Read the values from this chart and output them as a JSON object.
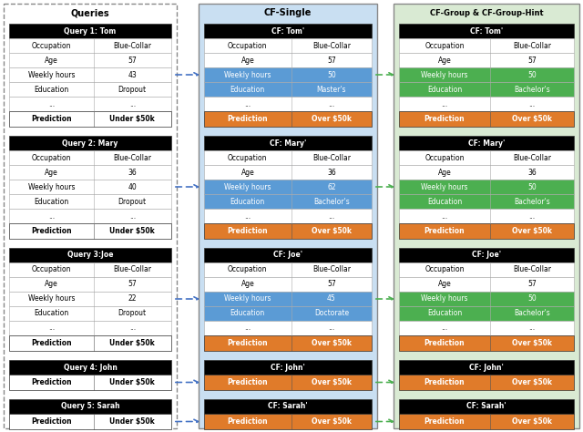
{
  "fig_width": 6.4,
  "fig_height": 4.74,
  "colors": {
    "black": "#000000",
    "white": "#ffffff",
    "blue_highlight": "#5b9bd5",
    "green_highlight": "#4caf50",
    "orange_prediction": "#e07b2a",
    "light_blue_bg": "#c9dff2",
    "light_green_bg": "#d9ead3",
    "arrow_blue": "#4472c4",
    "arrow_green": "#4caf50"
  },
  "query_tables": [
    {
      "name": "Query 1: Tom",
      "rows": [
        {
          "label": "Occupation",
          "value": "Blue-Collar"
        },
        {
          "label": "Age",
          "value": "57"
        },
        {
          "label": "Weekly hours",
          "value": "43"
        },
        {
          "label": "Education",
          "value": "Dropout"
        },
        {
          "label": "...",
          "value": "..."
        }
      ],
      "prediction": "Under $50k",
      "pred_bold": true
    },
    {
      "name": "Query 2: Mary",
      "rows": [
        {
          "label": "Occupation",
          "value": "Blue-Collar"
        },
        {
          "label": "Age",
          "value": "36"
        },
        {
          "label": "Weekly hours",
          "value": "40"
        },
        {
          "label": "Education",
          "value": "Dropout"
        },
        {
          "label": "...",
          "value": "..."
        }
      ],
      "prediction": "Under $50k",
      "pred_bold": true
    },
    {
      "name": "Query 3:Joe",
      "rows": [
        {
          "label": "Occupation",
          "value": "Blue-Collar"
        },
        {
          "label": "Age",
          "value": "57"
        },
        {
          "label": "Weekly hours",
          "value": "22"
        },
        {
          "label": "Education",
          "value": "Dropout"
        },
        {
          "label": "...",
          "value": "..."
        }
      ],
      "prediction": "Under $50k",
      "pred_bold": true
    },
    {
      "name": "Query 4: John",
      "rows": [],
      "prediction": "Under $50k",
      "pred_bold": true
    },
    {
      "name": "Query 5: Sarah",
      "rows": [],
      "prediction": "Under $50k",
      "pred_bold": true
    }
  ],
  "cf_single_tables": [
    {
      "name": "CF: Tom'",
      "rows": [
        {
          "label": "Occupation",
          "value": "Blue-Collar",
          "hl": false
        },
        {
          "label": "Age",
          "value": "57",
          "hl": false
        },
        {
          "label": "Weekly hours",
          "value": "50",
          "hl": true
        },
        {
          "label": "Education",
          "value": "Master's",
          "hl": true
        },
        {
          "label": "...",
          "value": "...",
          "hl": false
        }
      ],
      "prediction": "Over $50k",
      "hl_color": "#5b9bd5"
    },
    {
      "name": "CF: Mary'",
      "rows": [
        {
          "label": "Occupation",
          "value": "Blue-Collar",
          "hl": false
        },
        {
          "label": "Age",
          "value": "36",
          "hl": false
        },
        {
          "label": "Weekly hours",
          "value": "62",
          "hl": true
        },
        {
          "label": "Education",
          "value": "Bachelor's",
          "hl": true
        },
        {
          "label": "...",
          "value": "...",
          "hl": false
        }
      ],
      "prediction": "Over $50k",
      "hl_color": "#5b9bd5"
    },
    {
      "name": "CF: Joe'",
      "rows": [
        {
          "label": "Occupation",
          "value": "Blue-Collar",
          "hl": false
        },
        {
          "label": "Age",
          "value": "57",
          "hl": false
        },
        {
          "label": "Weekly hours",
          "value": "45",
          "hl": true
        },
        {
          "label": "Education",
          "value": "Doctorate",
          "hl": true
        },
        {
          "label": "...",
          "value": "...",
          "hl": false
        }
      ],
      "prediction": "Over $50k",
      "hl_color": "#5b9bd5"
    },
    {
      "name": "CF: John'",
      "rows": [],
      "prediction": "Over $50k",
      "hl_color": "#5b9bd5"
    },
    {
      "name": "CF: Sarah'",
      "rows": [],
      "prediction": "Over $50k",
      "hl_color": "#5b9bd5"
    }
  ],
  "cf_group_tables": [
    {
      "name": "CF: Tom'",
      "rows": [
        {
          "label": "Occupation",
          "value": "Blue-Collar",
          "hl": false
        },
        {
          "label": "Age",
          "value": "57",
          "hl": false
        },
        {
          "label": "Weekly hours",
          "value": "50",
          "hl": true
        },
        {
          "label": "Education",
          "value": "Bachelor's",
          "hl": true
        },
        {
          "label": "...",
          "value": "...",
          "hl": false
        }
      ],
      "prediction": "Over $50k",
      "hl_color": "#4caf50"
    },
    {
      "name": "CF: Mary'",
      "rows": [
        {
          "label": "Occupation",
          "value": "Blue-Collar",
          "hl": false
        },
        {
          "label": "Age",
          "value": "36",
          "hl": false
        },
        {
          "label": "Weekly hours",
          "value": "50",
          "hl": true
        },
        {
          "label": "Education",
          "value": "Bachelor's",
          "hl": true
        },
        {
          "label": "...",
          "value": "...",
          "hl": false
        }
      ],
      "prediction": "Over $50k",
      "hl_color": "#4caf50"
    },
    {
      "name": "CF: Joe'",
      "rows": [
        {
          "label": "Occupation",
          "value": "Blue-Collar",
          "hl": false
        },
        {
          "label": "Age",
          "value": "57",
          "hl": false
        },
        {
          "label": "Weekly hours",
          "value": "50",
          "hl": true
        },
        {
          "label": "Education",
          "value": "Bachelor's",
          "hl": true
        },
        {
          "label": "...",
          "value": "...",
          "hl": false
        }
      ],
      "prediction": "Over $50k",
      "hl_color": "#4caf50"
    },
    {
      "name": "CF: John'",
      "rows": [],
      "prediction": "Over $50k",
      "hl_color": "#4caf50"
    },
    {
      "name": "CF: Sarah'",
      "rows": [],
      "prediction": "Over $50k",
      "hl_color": "#4caf50"
    }
  ],
  "arrow_rows": [
    2,
    2,
    2,
    -1,
    -1
  ],
  "section_titles": [
    "Queries",
    "CF-Single",
    "CF-Group & CF-Group-Hint"
  ]
}
